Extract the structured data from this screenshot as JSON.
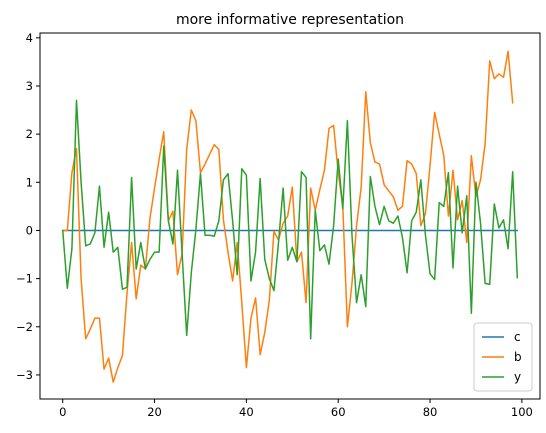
{
  "chart_data": {
    "type": "line",
    "title": "more informative representation",
    "xlabel": "",
    "ylabel": "",
    "xlim": [
      -4.95,
      103.95
    ],
    "ylim": [
      -3.5,
      4.1
    ],
    "xticks": [
      0,
      20,
      40,
      60,
      80,
      100
    ],
    "yticks": [
      -3,
      -2,
      -1,
      0,
      1,
      2,
      3,
      4
    ],
    "grid": false,
    "legend_position": "lower-right",
    "series": [
      {
        "name": "c",
        "color": "#1f77b4",
        "values": [
          0,
          0,
          0,
          0,
          0,
          0,
          0,
          0,
          0,
          0,
          0,
          0,
          0,
          0,
          0,
          0,
          0,
          0,
          0,
          0,
          0,
          0,
          0,
          0,
          0,
          0,
          0,
          0,
          0,
          0,
          0,
          0,
          0,
          0,
          0,
          0,
          0,
          0,
          0,
          0,
          0,
          0,
          0,
          0,
          0,
          0,
          0,
          0,
          0,
          0,
          0,
          0,
          0,
          0,
          0,
          0,
          0,
          0,
          0,
          0,
          0,
          0,
          0,
          0,
          0,
          0,
          0,
          0,
          0,
          0,
          0,
          0,
          0,
          0,
          0,
          0,
          0,
          0,
          0,
          0,
          0,
          0,
          0,
          0,
          0,
          0,
          0,
          0,
          0,
          0,
          0,
          0,
          0,
          0,
          0,
          0,
          0,
          0,
          0,
          0
        ]
      },
      {
        "name": "b",
        "color": "#ff7f0e",
        "values": [
          0.0,
          0.0,
          1.2,
          1.7,
          -1.0,
          -2.25,
          -2.05,
          -1.82,
          -1.82,
          -2.88,
          -2.65,
          -3.15,
          -2.85,
          -2.6,
          -1.3,
          -0.25,
          -1.42,
          -0.72,
          -0.8,
          0.25,
          0.88,
          1.48,
          2.05,
          0.2,
          0.4,
          -0.92,
          -0.48,
          1.68,
          2.5,
          2.28,
          1.2,
          1.38,
          1.58,
          1.78,
          1.68,
          0.22,
          -0.45,
          -1.05,
          -0.25,
          -1.5,
          -2.85,
          -1.82,
          -1.4,
          -2.58,
          -2.12,
          -1.45,
          -0.02,
          -0.2,
          0.15,
          0.3,
          0.9,
          -0.65,
          -0.45,
          -1.5,
          0.88,
          0.42,
          0.85,
          1.25,
          2.12,
          2.18,
          1.2,
          0.5,
          -2.0,
          -1.1,
          0.1,
          0.9,
          2.88,
          1.82,
          1.42,
          1.38,
          0.95,
          0.82,
          0.7,
          0.42,
          0.5,
          1.45,
          1.38,
          1.18,
          0.1,
          0.35,
          1.35,
          2.45,
          2.0,
          1.55,
          0.3,
          1.25,
          0.22,
          0.62,
          -0.25,
          1.55,
          0.7,
          1.05,
          1.8,
          3.52,
          3.15,
          3.25,
          3.18,
          3.72,
          2.65
        ]
      },
      {
        "name": "y",
        "color": "#2ca02c",
        "values": [
          0.0,
          -1.2,
          -0.38,
          2.7,
          1.0,
          -0.32,
          -0.28,
          -0.05,
          0.92,
          -0.35,
          0.38,
          -0.45,
          -0.35,
          -1.22,
          -1.18,
          1.1,
          -0.8,
          -0.25,
          -0.8,
          -0.6,
          -0.45,
          -0.45,
          1.75,
          0.2,
          -0.28,
          1.25,
          -0.48,
          -2.18,
          -0.88,
          0.02,
          1.18,
          -0.1,
          -0.1,
          -0.12,
          0.2,
          1.05,
          1.18,
          0.2,
          -0.92,
          1.28,
          1.15,
          -1.05,
          -0.45,
          1.08,
          -0.6,
          -1.0,
          -1.25,
          -0.25,
          0.88,
          -0.62,
          -0.35,
          -0.65,
          1.22,
          1.1,
          -2.25,
          0.42,
          -0.42,
          -0.3,
          -0.7,
          0.1,
          1.48,
          0.45,
          2.28,
          -0.1,
          -1.5,
          -0.92,
          -1.58,
          1.12,
          0.5,
          0.12,
          0.5,
          0.2,
          0.15,
          0.3,
          -0.15,
          -0.88,
          0.2,
          0.38,
          1.05,
          -0.1,
          -0.9,
          -1.02,
          0.58,
          0.5,
          1.2,
          -0.78,
          0.92,
          -0.05,
          0.72,
          -1.72,
          1.0,
          0.15,
          -1.1,
          -1.12,
          0.55,
          0.05,
          0.22,
          -0.38,
          1.22,
          -0.98
        ]
      }
    ]
  }
}
